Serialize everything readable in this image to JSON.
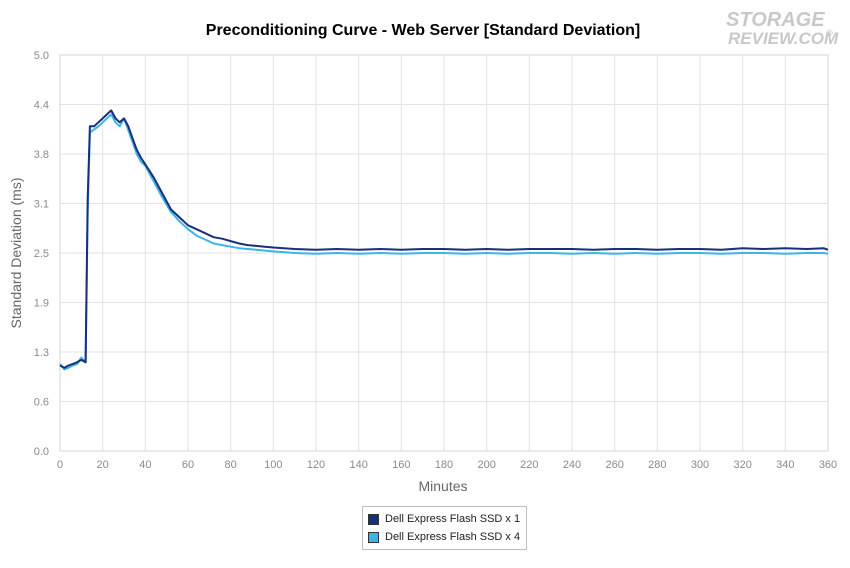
{
  "header": {
    "logo_top": "STORAGE",
    "logo_bottom": "REVIEW.COM",
    "logo_mark": "®"
  },
  "chart_data": {
    "type": "line",
    "title": "Preconditioning Curve - Web Server [Standard Deviation]",
    "xlabel": "Minutes",
    "ylabel": "Standard Deviation (ms)",
    "xlim": [
      0,
      360
    ],
    "ylim": [
      0,
      5.0
    ],
    "x_ticks": [
      "0",
      "20",
      "40",
      "60",
      "80",
      "100",
      "120",
      "140",
      "160",
      "180",
      "200",
      "220",
      "240",
      "260",
      "280",
      "300",
      "320",
      "340",
      "360"
    ],
    "y_ticks": [
      "0.0",
      "0.6",
      "1.3",
      "1.9",
      "2.5",
      "3.1",
      "3.8",
      "4.4",
      "5.0"
    ],
    "grid": true,
    "legend_position": "bottom",
    "series": [
      {
        "name": "Dell Express Flash SSD x 1",
        "color": "#1a2f7a",
        "x": [
          0,
          2,
          4,
          6,
          8,
          10,
          12,
          13,
          14,
          16,
          18,
          20,
          22,
          24,
          26,
          28,
          30,
          32,
          34,
          36,
          38,
          40,
          44,
          48,
          52,
          56,
          60,
          64,
          68,
          72,
          76,
          80,
          84,
          88,
          92,
          96,
          100,
          110,
          120,
          130,
          140,
          150,
          160,
          170,
          180,
          190,
          200,
          210,
          220,
          230,
          240,
          250,
          260,
          270,
          280,
          290,
          300,
          310,
          320,
          330,
          340,
          350,
          358,
          360
        ],
        "y": [
          1.08,
          1.05,
          1.08,
          1.1,
          1.12,
          1.15,
          1.12,
          3.2,
          4.1,
          4.1,
          4.15,
          4.2,
          4.25,
          4.3,
          4.2,
          4.15,
          4.2,
          4.1,
          3.95,
          3.8,
          3.7,
          3.62,
          3.45,
          3.25,
          3.05,
          2.95,
          2.85,
          2.8,
          2.75,
          2.7,
          2.68,
          2.65,
          2.62,
          2.6,
          2.59,
          2.58,
          2.57,
          2.55,
          2.54,
          2.55,
          2.54,
          2.55,
          2.54,
          2.55,
          2.55,
          2.54,
          2.55,
          2.54,
          2.55,
          2.55,
          2.55,
          2.54,
          2.55,
          2.55,
          2.54,
          2.55,
          2.55,
          2.54,
          2.56,
          2.55,
          2.56,
          2.55,
          2.56,
          2.54
        ]
      },
      {
        "name": "Dell Express Flash SSD x 4",
        "color": "#3cb4e8",
        "x": [
          0,
          2,
          4,
          6,
          8,
          10,
          12,
          13,
          14,
          16,
          18,
          20,
          22,
          24,
          26,
          28,
          30,
          32,
          34,
          36,
          38,
          40,
          44,
          48,
          52,
          56,
          60,
          64,
          68,
          72,
          76,
          80,
          84,
          88,
          92,
          96,
          100,
          110,
          120,
          130,
          140,
          150,
          160,
          170,
          180,
          190,
          200,
          210,
          220,
          230,
          240,
          250,
          260,
          270,
          280,
          290,
          300,
          310,
          320,
          330,
          340,
          350,
          358,
          360
        ],
        "y": [
          1.1,
          1.03,
          1.05,
          1.08,
          1.1,
          1.18,
          1.12,
          3.0,
          4.02,
          4.06,
          4.1,
          4.15,
          4.2,
          4.25,
          4.15,
          4.1,
          4.2,
          4.05,
          3.9,
          3.75,
          3.65,
          3.6,
          3.4,
          3.2,
          3.02,
          2.9,
          2.8,
          2.72,
          2.67,
          2.62,
          2.6,
          2.58,
          2.56,
          2.55,
          2.54,
          2.53,
          2.52,
          2.5,
          2.49,
          2.5,
          2.49,
          2.5,
          2.49,
          2.5,
          2.5,
          2.49,
          2.5,
          2.49,
          2.5,
          2.5,
          2.49,
          2.5,
          2.49,
          2.5,
          2.49,
          2.5,
          2.5,
          2.49,
          2.5,
          2.5,
          2.49,
          2.5,
          2.5,
          2.49
        ]
      }
    ]
  }
}
